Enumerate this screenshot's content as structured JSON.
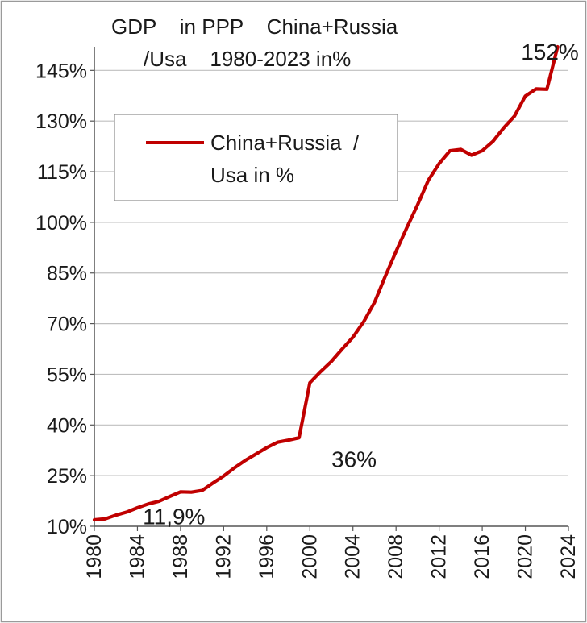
{
  "chart_data": {
    "type": "line",
    "title_lines": [
      "GDP    in PPP    China+Russia",
      "/Usa    1980-2023 in%"
    ],
    "xlabel": "",
    "ylabel": "",
    "xlim": [
      1980,
      2024
    ],
    "ylim": [
      10,
      152
    ],
    "x_ticks": [
      1980,
      1984,
      1988,
      1992,
      1996,
      2000,
      2004,
      2008,
      2012,
      2016,
      2020,
      2024
    ],
    "x_tick_labels": [
      "1980",
      "1984",
      "1988",
      "1992",
      "1996",
      "2000",
      "2004",
      "2008",
      "2012",
      "2016",
      "2020",
      "2024"
    ],
    "y_ticks": [
      10,
      25,
      40,
      55,
      70,
      85,
      100,
      115,
      130,
      145
    ],
    "y_tick_labels": [
      "10%",
      "25%",
      "40%",
      "55%",
      "70%",
      "85%",
      "100%",
      "115%",
      "130%",
      "145%"
    ],
    "grid": "horizontal",
    "legend": {
      "position": "top-left",
      "label_lines": [
        "China+Russia  /",
        "Usa in %"
      ]
    },
    "series": [
      {
        "name": "China+Russia  / Usa in %",
        "color": "#c00000",
        "x": [
          1980,
          1981,
          1982,
          1983,
          1984,
          1985,
          1986,
          1987,
          1988,
          1989,
          1990,
          1991,
          1992,
          1993,
          1994,
          1995,
          1996,
          1997,
          1998,
          1999,
          2000,
          2001,
          2002,
          2003,
          2004,
          2005,
          2006,
          2007,
          2008,
          2009,
          2010,
          2011,
          2012,
          2013,
          2014,
          2015,
          2016,
          2017,
          2018,
          2019,
          2020,
          2021,
          2022,
          2023
        ],
        "y": [
          11.9,
          12.2,
          13.3,
          14.2,
          15.5,
          16.6,
          17.4,
          18.8,
          20.2,
          20.1,
          20.6,
          22.8,
          24.9,
          27.3,
          29.5,
          31.4,
          33.3,
          34.9,
          35.5,
          36.2,
          52.5,
          55.8,
          58.8,
          62.5,
          66.0,
          70.6,
          76.3,
          84.0,
          91.4,
          98.4,
          105.2,
          112.5,
          117.4,
          121.2,
          121.6,
          119.9,
          121.2,
          124.0,
          128.0,
          131.5,
          137.4,
          139.5,
          139.4,
          152.0
        ]
      }
    ],
    "annotations": [
      {
        "text": "11,9%",
        "x": 1984.5,
        "y": 10.6
      },
      {
        "text": "36%",
        "x": 2002,
        "y": 27.5
      },
      {
        "text": "152%",
        "x": 2019.6,
        "y": 148.2
      }
    ]
  }
}
